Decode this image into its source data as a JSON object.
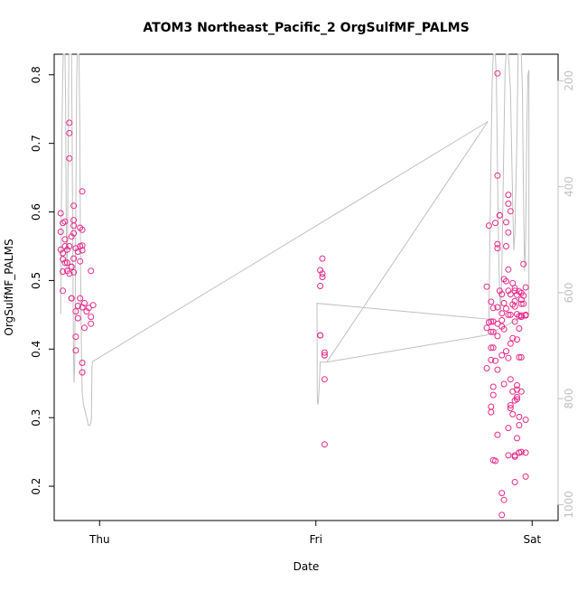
{
  "chart_data": {
    "type": "scatter",
    "title": "ATOM3 Northeast_Pacific_2 OrgSulfMF_PALMS",
    "xlabel": "Date",
    "ylabel": "OrgSulfMF_PALMS",
    "x_tick_labels": [
      "Thu",
      "Fri",
      "Sat"
    ],
    "x_tick_positions": [
      0,
      1,
      2
    ],
    "x_range": [
      -0.21,
      2.12
    ],
    "ylim": [
      0.15,
      0.83
    ],
    "y_ticks": [
      0.2,
      0.3,
      0.4,
      0.5,
      0.6,
      0.7,
      0.8
    ],
    "y_tick_labels": [
      "0.2",
      "0.3",
      "0.4",
      "0.5",
      "0.6",
      "0.7",
      "0.8"
    ],
    "secondary_y_ticks": [
      200,
      400,
      600,
      800,
      1000
    ],
    "secondary_y_tick_labels": [
      "200",
      "400",
      "600",
      "800",
      "1000"
    ],
    "secondary_y_reversed": true,
    "grid": false,
    "legend": "none",
    "colors": {
      "points": "#e7298a",
      "secondary_line": "#c0c0c0",
      "axis": "#000000",
      "secondary_axis": "#c0c0c0"
    },
    "points": [
      [
        -0.18,
        0.598
      ],
      [
        -0.18,
        0.571
      ],
      [
        -0.18,
        0.545
      ],
      [
        -0.17,
        0.54
      ],
      [
        -0.17,
        0.584
      ],
      [
        -0.17,
        0.531
      ],
      [
        -0.17,
        0.513
      ],
      [
        -0.17,
        0.485
      ],
      [
        -0.16,
        0.586
      ],
      [
        -0.16,
        0.55
      ],
      [
        -0.16,
        0.526
      ],
      [
        -0.16,
        0.56
      ],
      [
        -0.15,
        0.545
      ],
      [
        -0.15,
        0.526
      ],
      [
        -0.15,
        0.514
      ],
      [
        -0.14,
        0.73
      ],
      [
        -0.14,
        0.715
      ],
      [
        -0.14,
        0.678
      ],
      [
        -0.14,
        0.55
      ],
      [
        -0.14,
        0.51
      ],
      [
        -0.13,
        0.564
      ],
      [
        -0.13,
        0.52
      ],
      [
        -0.13,
        0.52
      ],
      [
        -0.13,
        0.474
      ],
      [
        -0.13,
        0.474
      ],
      [
        -0.12,
        0.609
      ],
      [
        -0.12,
        0.588
      ],
      [
        -0.12,
        0.58
      ],
      [
        -0.12,
        0.569
      ],
      [
        -0.12,
        0.532
      ],
      [
        -0.12,
        0.512
      ],
      [
        -0.11,
        0.547
      ],
      [
        -0.11,
        0.455
      ],
      [
        -0.11,
        0.418
      ],
      [
        -0.11,
        0.398
      ],
      [
        -0.1,
        0.542
      ],
      [
        -0.1,
        0.463
      ],
      [
        -0.1,
        0.445
      ],
      [
        -0.09,
        0.577
      ],
      [
        -0.09,
        0.55
      ],
      [
        -0.09,
        0.528
      ],
      [
        -0.09,
        0.474
      ],
      [
        -0.08,
        0.63
      ],
      [
        -0.08,
        0.574
      ],
      [
        -0.08,
        0.551
      ],
      [
        -0.08,
        0.544
      ],
      [
        -0.08,
        0.461
      ],
      [
        -0.08,
        0.38
      ],
      [
        -0.08,
        0.366
      ],
      [
        -0.07,
        0.467
      ],
      [
        -0.07,
        0.431
      ],
      [
        -0.06,
        0.455
      ],
      [
        -0.05,
        0.46
      ],
      [
        -0.04,
        0.447
      ],
      [
        -0.04,
        0.514
      ],
      [
        -0.04,
        0.437
      ],
      [
        -0.03,
        0.464
      ],
      [
        1.02,
        0.515
      ],
      [
        1.02,
        0.492
      ],
      [
        1.02,
        0.42
      ],
      [
        1.02,
        0.42
      ],
      [
        1.03,
        0.505
      ],
      [
        1.03,
        0.51
      ],
      [
        1.03,
        0.532
      ],
      [
        1.04,
        0.395
      ],
      [
        1.04,
        0.391
      ],
      [
        1.04,
        0.356
      ],
      [
        1.04,
        0.261
      ],
      [
        1.79,
        0.491
      ],
      [
        1.79,
        0.431
      ],
      [
        1.79,
        0.372
      ],
      [
        1.8,
        0.58
      ],
      [
        1.8,
        0.439
      ],
      [
        1.81,
        0.469
      ],
      [
        1.81,
        0.44
      ],
      [
        1.81,
        0.425
      ],
      [
        1.81,
        0.402
      ],
      [
        1.81,
        0.384
      ],
      [
        1.81,
        0.316
      ],
      [
        1.81,
        0.308
      ],
      [
        1.82,
        0.46
      ],
      [
        1.82,
        0.44
      ],
      [
        1.82,
        0.425
      ],
      [
        1.82,
        0.402
      ],
      [
        1.82,
        0.345
      ],
      [
        1.82,
        0.333
      ],
      [
        1.82,
        0.238
      ],
      [
        1.83,
        0.584
      ],
      [
        1.83,
        0.383
      ],
      [
        1.83,
        0.237
      ],
      [
        1.84,
        0.802
      ],
      [
        1.84,
        0.653
      ],
      [
        1.84,
        0.553
      ],
      [
        1.84,
        0.547
      ],
      [
        1.84,
        0.461
      ],
      [
        1.84,
        0.437
      ],
      [
        1.84,
        0.419
      ],
      [
        1.84,
        0.37
      ],
      [
        1.84,
        0.275
      ],
      [
        1.85,
        0.485
      ],
      [
        1.85,
        0.595
      ],
      [
        1.85,
        0.595
      ],
      [
        1.86,
        0.48
      ],
      [
        1.86,
        0.452
      ],
      [
        1.86,
        0.442
      ],
      [
        1.86,
        0.433
      ],
      [
        1.86,
        0.391
      ],
      [
        1.86,
        0.19
      ],
      [
        1.86,
        0.158
      ],
      [
        1.87,
        0.502
      ],
      [
        1.87,
        0.467
      ],
      [
        1.87,
        0.429
      ],
      [
        1.87,
        0.349
      ],
      [
        1.87,
        0.18
      ],
      [
        1.88,
        0.585
      ],
      [
        1.88,
        0.55
      ],
      [
        1.88,
        0.499
      ],
      [
        1.88,
        0.459
      ],
      [
        1.88,
        0.397
      ],
      [
        1.89,
        0.625
      ],
      [
        1.89,
        0.612
      ],
      [
        1.89,
        0.57
      ],
      [
        1.89,
        0.516
      ],
      [
        1.89,
        0.485
      ],
      [
        1.89,
        0.45
      ],
      [
        1.89,
        0.387
      ],
      [
        1.89,
        0.285
      ],
      [
        1.89,
        0.245
      ],
      [
        1.9,
        0.601
      ],
      [
        1.9,
        0.48
      ],
      [
        1.9,
        0.45
      ],
      [
        1.9,
        0.408
      ],
      [
        1.9,
        0.356
      ],
      [
        1.9,
        0.318
      ],
      [
        1.9,
        0.314
      ],
      [
        1.91,
        0.496
      ],
      [
        1.91,
        0.465
      ],
      [
        1.91,
        0.416
      ],
      [
        1.91,
        0.338
      ],
      [
        1.91,
        0.305
      ],
      [
        1.92,
        0.489
      ],
      [
        1.92,
        0.485
      ],
      [
        1.92,
        0.47
      ],
      [
        1.92,
        0.462
      ],
      [
        1.92,
        0.44
      ],
      [
        1.92,
        0.325
      ],
      [
        1.92,
        0.245
      ],
      [
        1.92,
        0.243
      ],
      [
        1.92,
        0.206
      ],
      [
        1.93,
        0.479
      ],
      [
        1.93,
        0.451
      ],
      [
        1.93,
        0.414
      ],
      [
        1.93,
        0.347
      ],
      [
        1.93,
        0.341
      ],
      [
        1.93,
        0.33
      ],
      [
        1.93,
        0.327
      ],
      [
        1.93,
        0.27
      ],
      [
        1.94,
        0.484
      ],
      [
        1.94,
        0.448
      ],
      [
        1.94,
        0.43
      ],
      [
        1.94,
        0.388
      ],
      [
        1.94,
        0.301
      ],
      [
        1.94,
        0.289
      ],
      [
        1.94,
        0.249
      ],
      [
        1.94,
        0.249
      ],
      [
        1.95,
        0.482
      ],
      [
        1.95,
        0.472
      ],
      [
        1.95,
        0.466
      ],
      [
        1.95,
        0.449
      ],
      [
        1.95,
        0.447
      ],
      [
        1.95,
        0.388
      ],
      [
        1.95,
        0.338
      ],
      [
        1.95,
        0.25
      ],
      [
        1.96,
        0.524
      ],
      [
        1.96,
        0.478
      ],
      [
        1.96,
        0.466
      ],
      [
        1.97,
        0.49
      ],
      [
        1.97,
        0.45
      ],
      [
        1.97,
        0.449
      ],
      [
        1.97,
        0.297
      ],
      [
        1.97,
        0.249
      ],
      [
        1.97,
        0.214
      ]
    ],
    "secondary_line": [
      [
        -0.18,
        640
      ],
      [
        -0.177,
        460
      ],
      [
        -0.174,
        300
      ],
      [
        -0.171,
        200
      ],
      [
        -0.168,
        60
      ],
      [
        -0.16,
        60
      ],
      [
        -0.157,
        250
      ],
      [
        -0.154,
        480
      ],
      [
        -0.151,
        560
      ],
      [
        -0.148,
        500
      ],
      [
        -0.145,
        300
      ],
      [
        -0.142,
        100
      ],
      [
        -0.139,
        60
      ],
      [
        -0.13,
        60
      ],
      [
        -0.127,
        300
      ],
      [
        -0.124,
        520
      ],
      [
        -0.121,
        700
      ],
      [
        -0.118,
        770
      ],
      [
        -0.115,
        730
      ],
      [
        -0.112,
        560
      ],
      [
        -0.109,
        380
      ],
      [
        -0.106,
        200
      ],
      [
        -0.103,
        60
      ],
      [
        -0.095,
        60
      ],
      [
        -0.092,
        280
      ],
      [
        -0.089,
        480
      ],
      [
        -0.086,
        640
      ],
      [
        -0.083,
        740
      ],
      [
        -0.08,
        790
      ],
      [
        -0.075,
        810
      ],
      [
        -0.06,
        835
      ],
      [
        -0.052,
        850
      ],
      [
        -0.044,
        850
      ],
      [
        -0.038,
        840
      ],
      [
        -0.035,
        740
      ],
      [
        -0.032,
        730
      ],
      [
        1.795,
        277
      ],
      [
        1.05,
        731
      ],
      [
        1.03,
        731
      ],
      [
        1.02,
        731
      ],
      [
        1.015,
        780
      ],
      [
        1.012,
        800
      ],
      [
        1.01,
        810
      ],
      [
        1.008,
        810
      ],
      [
        1.007,
        800
      ],
      [
        1.006,
        780
      ],
      [
        1.006,
        720
      ],
      [
        1.005,
        620
      ],
      [
        1.8,
        650
      ],
      [
        1.805,
        480
      ],
      [
        1.81,
        330
      ],
      [
        1.815,
        200
      ],
      [
        1.82,
        60
      ],
      [
        1.83,
        60
      ],
      [
        1.835,
        200
      ],
      [
        1.84,
        370
      ],
      [
        1.845,
        520
      ],
      [
        1.85,
        600
      ],
      [
        1.855,
        640
      ],
      [
        1.86,
        560
      ],
      [
        1.865,
        430
      ],
      [
        1.87,
        300
      ],
      [
        1.875,
        180
      ],
      [
        1.88,
        60
      ],
      [
        1.89,
        60
      ],
      [
        1.9,
        220
      ],
      [
        1.91,
        430
      ],
      [
        1.915,
        520
      ],
      [
        1.92,
        490
      ],
      [
        1.93,
        300
      ],
      [
        1.935,
        150
      ],
      [
        1.94,
        60
      ],
      [
        1.95,
        60
      ],
      [
        1.955,
        220
      ],
      [
        1.96,
        420
      ],
      [
        1.965,
        560
      ],
      [
        1.97,
        500
      ],
      [
        1.975,
        300
      ],
      [
        1.98,
        190
      ],
      [
        1.985,
        180
      ],
      [
        1.985,
        640
      ],
      [
        1.79,
        680
      ],
      [
        1.05,
        731
      ]
    ],
    "secondary_ylim": [
      1030,
      150
    ]
  }
}
